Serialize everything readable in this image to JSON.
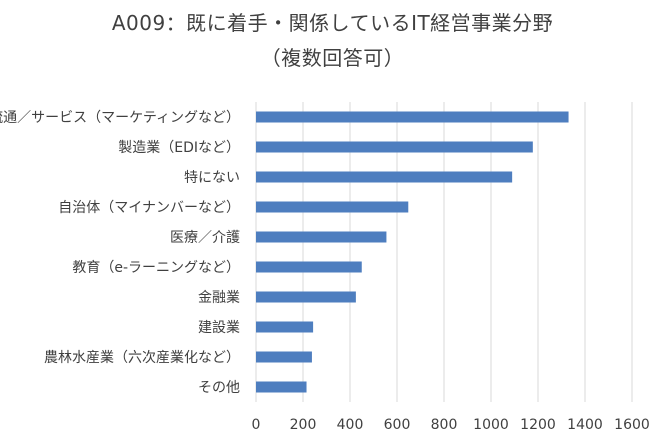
{
  "chart_data": {
    "type": "bar",
    "orientation": "horizontal",
    "title": "A009：既に着手・関係しているIT経営事業分野",
    "subtitle": "（複数回答可）",
    "categories": [
      "流通／サービス（マーケティングなど）",
      "製造業（EDIなど）",
      "特にない",
      "自治体（マイナンバーなど）",
      "医療／介護",
      "教育（e-ラーニングなど）",
      "金融業",
      "建設業",
      "農林水産業（六次産業化など）",
      "その他"
    ],
    "values": [
      1330,
      1178,
      1090,
      648,
      555,
      450,
      425,
      243,
      238,
      215
    ],
    "xlim": [
      0,
      1600
    ],
    "xticks": [
      "0",
      "200",
      "400",
      "600",
      "800",
      "1000",
      "1200",
      "1400",
      "1600"
    ],
    "grid": true,
    "legend": "none",
    "bar_color": "#4e7ebf",
    "grid_color": "#d9d9d9"
  }
}
